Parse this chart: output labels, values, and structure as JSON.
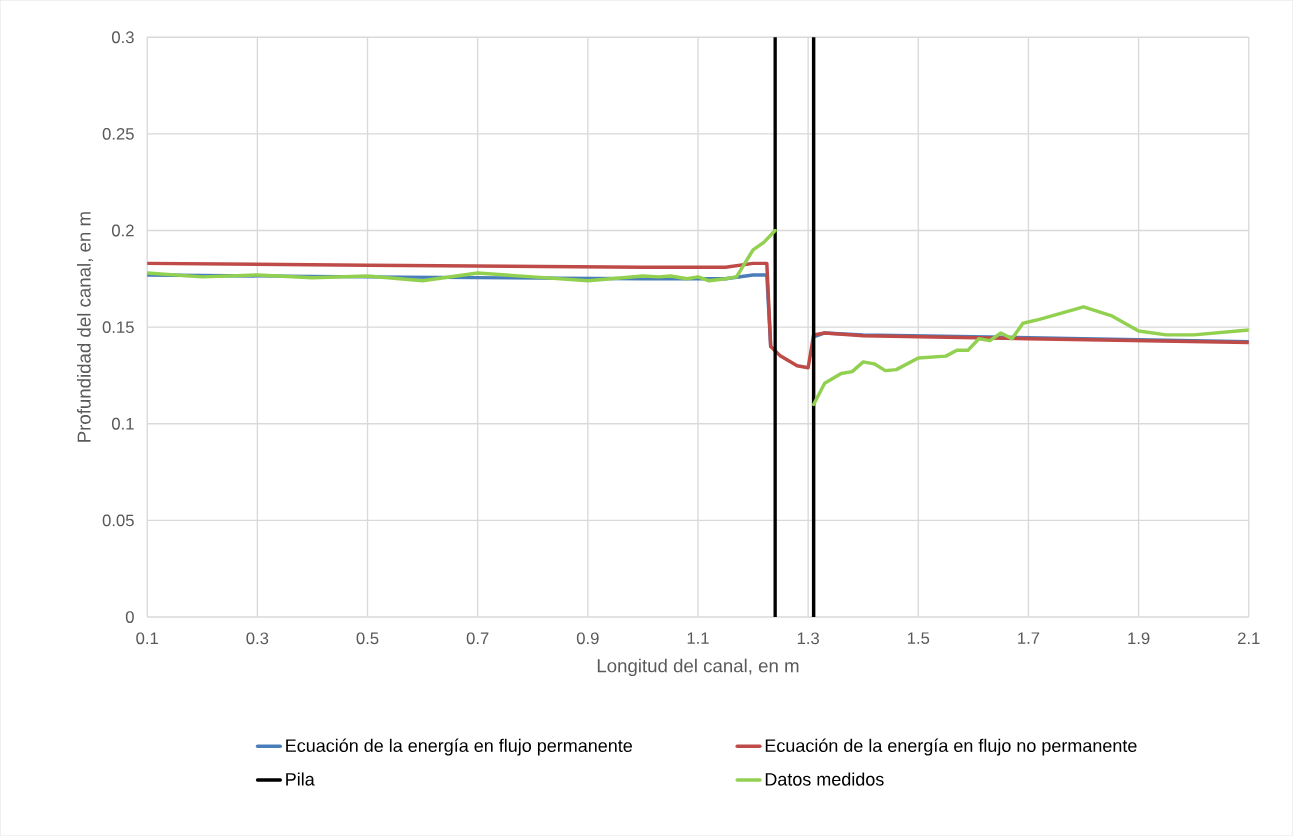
{
  "chart_data": {
    "type": "line",
    "xlabel": "Longitud del canal, en m",
    "ylabel": "Profundidad del canal, en m",
    "xlim": [
      0.1,
      2.1
    ],
    "xticks": [
      0.1,
      0.3,
      0.5,
      0.7,
      0.9,
      1.1,
      1.3,
      1.5,
      1.7,
      1.9,
      2.1
    ],
    "ylim": [
      0,
      0.3
    ],
    "yticks": [
      0,
      0.05,
      0.1,
      0.15,
      0.2,
      0.25,
      0.3
    ],
    "grid": true,
    "legend": "bottom",
    "marker": "none",
    "line_style": "solid",
    "series": [
      {
        "name": "Ecuación de la energía en flujo permanente",
        "color": "#4a7ebb",
        "x": [
          0.1,
          0.5,
          1.0,
          1.15,
          1.2,
          1.225,
          1.232,
          1.25,
          1.28,
          1.3,
          1.31,
          1.33,
          1.4,
          1.6,
          1.8,
          2.1
        ],
        "values": [
          0.177,
          0.176,
          0.175,
          0.175,
          0.177,
          0.177,
          0.14,
          null,
          null,
          null,
          0.145,
          0.147,
          0.146,
          0.145,
          0.144,
          0.1425
        ]
      },
      {
        "name": "Ecuación de la energía en flujo no permanente",
        "color": "#be4b48",
        "x": [
          0.1,
          0.5,
          1.0,
          1.15,
          1.2,
          1.225,
          1.232,
          1.25,
          1.28,
          1.3,
          1.31,
          1.33,
          1.4,
          1.7,
          2.1
        ],
        "values": [
          0.183,
          0.182,
          0.181,
          0.181,
          0.183,
          0.183,
          0.14,
          0.135,
          0.13,
          0.129,
          0.146,
          0.147,
          0.1455,
          0.144,
          0.142
        ]
      },
      {
        "name": "Pila",
        "color": "#000000",
        "x": [
          1.24,
          1.24,
          1.275,
          1.31,
          1.31
        ],
        "values": [
          0,
          0.3,
          null,
          0.3,
          0
        ]
      },
      {
        "name": "Datos medidos",
        "color": "#92d050",
        "x": [
          0.1,
          0.2,
          0.3,
          0.4,
          0.5,
          0.6,
          0.7,
          0.8,
          0.9,
          1.0,
          1.03,
          1.05,
          1.08,
          1.1,
          1.12,
          1.15,
          1.17,
          1.2,
          1.22,
          1.24,
          1.275,
          1.31,
          1.33,
          1.36,
          1.38,
          1.4,
          1.42,
          1.44,
          1.46,
          1.5,
          1.55,
          1.57,
          1.59,
          1.61,
          1.63,
          1.65,
          1.67,
          1.69,
          1.72,
          1.8,
          1.85,
          1.9,
          1.95,
          2.0,
          2.1
        ],
        "values": [
          0.178,
          0.176,
          0.177,
          0.1755,
          0.1765,
          0.174,
          0.178,
          0.176,
          0.174,
          0.1765,
          0.176,
          0.1765,
          0.175,
          0.176,
          0.174,
          0.175,
          0.176,
          0.19,
          0.194,
          0.2,
          null,
          0.11,
          0.121,
          0.126,
          0.127,
          0.132,
          0.131,
          0.1275,
          0.128,
          0.134,
          0.135,
          0.138,
          0.138,
          0.144,
          0.143,
          0.147,
          0.144,
          0.152,
          0.154,
          0.1605,
          0.156,
          0.148,
          0.146,
          0.146,
          0.1485
        ]
      }
    ]
  }
}
